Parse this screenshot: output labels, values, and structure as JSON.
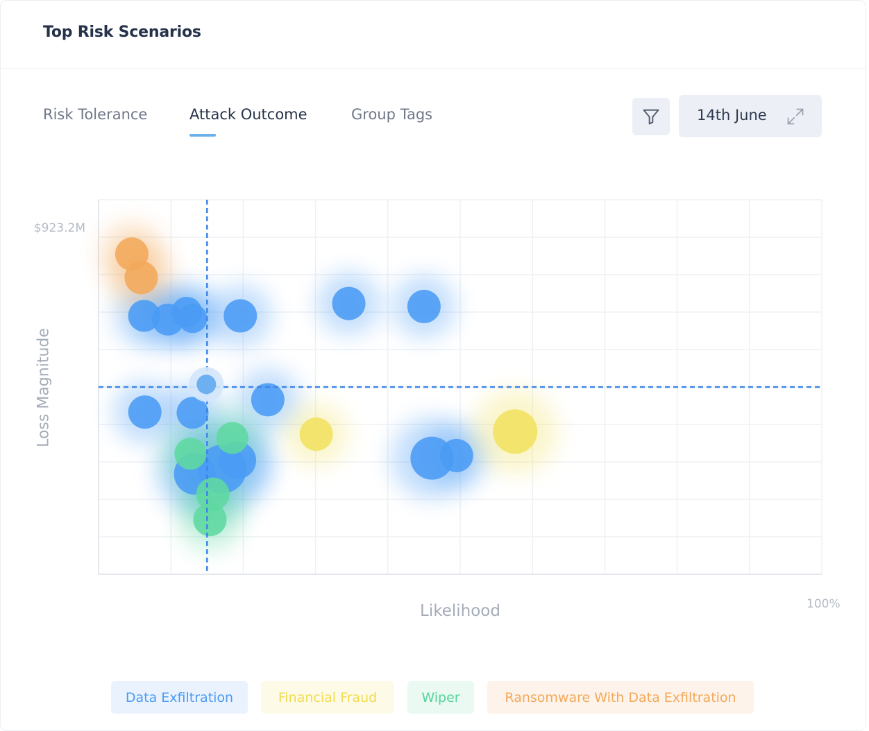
{
  "card": {
    "title": "Top Risk Scenarios"
  },
  "tabs": [
    {
      "label": "Risk Tolerance",
      "active": false
    },
    {
      "label": "Attack Outcome",
      "active": true
    },
    {
      "label": "Group Tags",
      "active": false
    }
  ],
  "toolbar": {
    "filter_icon": "filter-icon",
    "date_label": "14th June",
    "expand_icon": "expand-icon"
  },
  "chart_data": {
    "type": "scatter",
    "title": "",
    "xlabel": "Likelihood",
    "ylabel": "Loss Magnitude",
    "x_max_label": "100%",
    "y_max_label": "$923.2M",
    "xlim": [
      0,
      100
    ],
    "ylim": [
      0,
      100
    ],
    "grid": true,
    "thresholds": {
      "x": 15,
      "y": 50
    },
    "legend_position": "bottom",
    "colors": {
      "Data Exfiltration": "#4a9bf5",
      "Financial Fraud": "#f1e160",
      "Wiper": "#5fd8a0",
      "Ransomware With Data Exfiltration": "#f2a95a"
    },
    "series": [
      {
        "name": "Data Exfiltration",
        "points": [
          {
            "x": 6.3,
            "y": 69.0,
            "size": 23
          },
          {
            "x": 9.6,
            "y": 68.0,
            "size": 23
          },
          {
            "x": 12.2,
            "y": 70.0,
            "size": 22
          },
          {
            "x": 13.0,
            "y": 68.3,
            "size": 21
          },
          {
            "x": 19.6,
            "y": 69.0,
            "size": 24
          },
          {
            "x": 34.6,
            "y": 72.3,
            "size": 24
          },
          {
            "x": 45.0,
            "y": 71.5,
            "size": 24
          },
          {
            "x": 6.4,
            "y": 43.3,
            "size": 24
          },
          {
            "x": 13.0,
            "y": 43.1,
            "size": 23
          },
          {
            "x": 23.4,
            "y": 46.6,
            "size": 24
          },
          {
            "x": 19.2,
            "y": 30.4,
            "size": 27
          },
          {
            "x": 17.1,
            "y": 28.1,
            "size": 35
          },
          {
            "x": 13.3,
            "y": 26.8,
            "size": 30
          },
          {
            "x": 46.1,
            "y": 31.0,
            "size": 31
          },
          {
            "x": 49.5,
            "y": 31.7,
            "size": 24
          }
        ]
      },
      {
        "name": "Financial Fraud",
        "points": [
          {
            "x": 30.1,
            "y": 37.4,
            "size": 24
          },
          {
            "x": 57.6,
            "y": 38.1,
            "size": 32
          }
        ]
      },
      {
        "name": "Wiper",
        "points": [
          {
            "x": 18.5,
            "y": 36.4,
            "size": 23
          },
          {
            "x": 12.7,
            "y": 32.2,
            "size": 23
          },
          {
            "x": 15.8,
            "y": 21.4,
            "size": 24
          },
          {
            "x": 15.4,
            "y": 14.6,
            "size": 24
          }
        ]
      },
      {
        "name": "Ransomware With Data Exfiltration",
        "points": [
          {
            "x": 4.6,
            "y": 85.5,
            "size": 24
          },
          {
            "x": 5.9,
            "y": 79.2,
            "size": 24
          }
        ]
      }
    ],
    "selected_point": {
      "x": 14.9,
      "y": 50.7
    }
  },
  "legend": [
    {
      "label": "Data Exfiltration",
      "color": "#4a9bf5",
      "bg": "#eaf3fd"
    },
    {
      "label": "Financial Fraud",
      "color": "#f0db4e",
      "bg": "#fdfbe8"
    },
    {
      "label": "Wiper",
      "color": "#55d39a",
      "bg": "#eafaf2"
    },
    {
      "label": "Ransomware With Data Exfiltration",
      "color": "#f2a95a",
      "bg": "#fdf3ea"
    }
  ]
}
